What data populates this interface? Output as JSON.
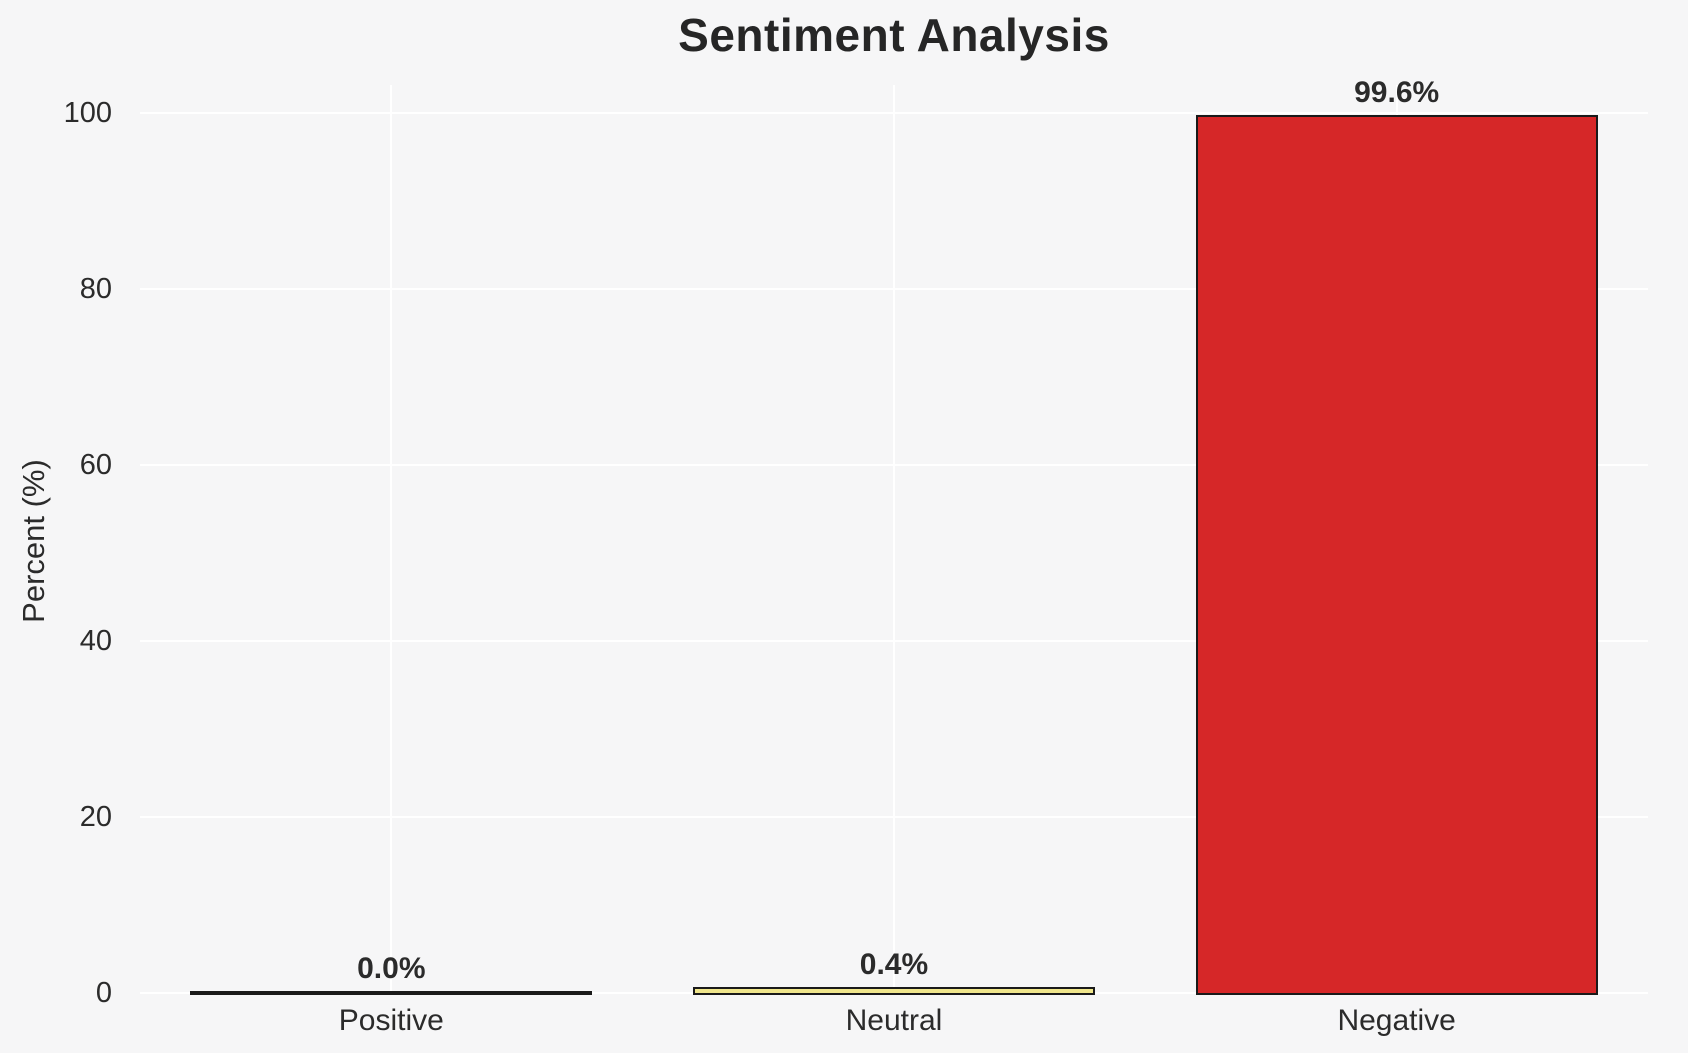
{
  "figure": {
    "background": "#f6f6f7",
    "grid_color": "#ffffff",
    "text_color": "#2b2b2b",
    "title_color": "#262626"
  },
  "chart_data": {
    "type": "bar",
    "title": "Sentiment Analysis",
    "xlabel": "",
    "ylabel": "Percent (%)",
    "categories": [
      "Positive",
      "Neutral",
      "Negative"
    ],
    "values": [
      0.0,
      0.4,
      99.6
    ],
    "value_labels": [
      "0.0%",
      "0.4%",
      "99.6%"
    ],
    "bar_colors": [
      "#2ca02c",
      "#f0e68c",
      "#d62728"
    ],
    "bar_edge_color": "#1a1a1a",
    "yticks": [
      0,
      20,
      40,
      60,
      80,
      100
    ],
    "ytick_labels": [
      "0",
      "20",
      "40",
      "60",
      "80",
      "100"
    ],
    "ylim": [
      0,
      103.2
    ],
    "grid": true,
    "grid_axes": "both",
    "legend": false,
    "bar_width_fraction": 0.8
  }
}
